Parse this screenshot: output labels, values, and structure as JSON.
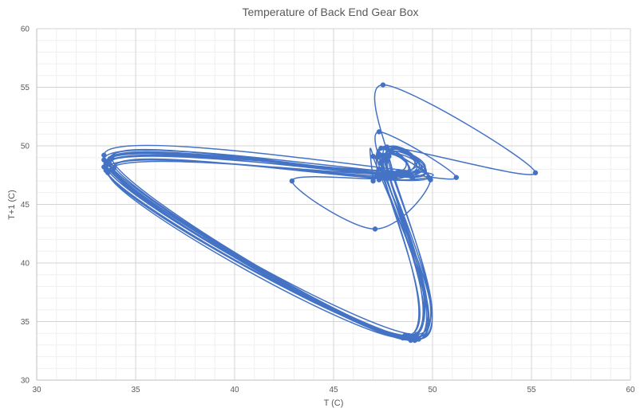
{
  "chart_data": {
    "type": "scatter",
    "title": "Temperature of Back End Gear Box",
    "xlabel": "T (C)",
    "ylabel": "T+1 (C)",
    "xlim": [
      30,
      60
    ],
    "ylim": [
      30,
      60
    ],
    "x_major_step": 5,
    "y_major_step": 5,
    "x_minor_step": 1,
    "y_minor_step": 1,
    "x_ticks": [
      "30",
      "35",
      "40",
      "45",
      "50",
      "55",
      "60"
    ],
    "y_ticks": [
      "30",
      "35",
      "40",
      "45",
      "50",
      "55",
      "60"
    ],
    "grid": true,
    "legend": "none",
    "series_color": "#4472C4",
    "series": [
      {
        "points": [
          [
            47.0,
            47.0
          ],
          [
            47.0,
            49.1
          ],
          [
            49.1,
            33.4
          ],
          [
            33.4,
            48.2
          ],
          [
            48.2,
            47.7
          ],
          [
            47.7,
            49.2
          ],
          [
            49.2,
            33.5
          ],
          [
            33.5,
            48.5
          ],
          [
            48.5,
            47.6
          ],
          [
            47.6,
            49.0
          ],
          [
            49.0,
            33.6
          ],
          [
            33.6,
            48.7
          ],
          [
            48.7,
            47.5
          ],
          [
            47.5,
            48.8
          ],
          [
            48.8,
            33.7
          ],
          [
            33.7,
            48.9
          ],
          [
            48.9,
            47.4
          ],
          [
            47.4,
            48.6
          ],
          [
            48.6,
            33.8
          ],
          [
            33.8,
            49.0
          ],
          [
            49.0,
            47.3
          ],
          [
            47.3,
            49.3
          ],
          [
            49.3,
            33.5
          ],
          [
            33.5,
            48.3
          ],
          [
            48.3,
            47.8
          ],
          [
            47.8,
            49.1
          ],
          [
            49.1,
            33.6
          ],
          [
            33.6,
            48.6
          ],
          [
            48.6,
            47.6
          ],
          [
            47.6,
            48.9
          ],
          [
            48.9,
            33.4
          ],
          [
            33.4,
            48.8
          ],
          [
            48.8,
            47.7
          ],
          [
            47.7,
            48.7
          ],
          [
            48.7,
            33.7
          ],
          [
            33.7,
            48.4
          ],
          [
            48.4,
            47.5
          ],
          [
            47.5,
            49.2
          ],
          [
            49.2,
            33.9
          ],
          [
            33.9,
            48.1
          ],
          [
            48.1,
            47.2
          ],
          [
            47.2,
            49.0
          ],
          [
            49.0,
            33.5
          ],
          [
            33.5,
            47.9
          ],
          [
            47.9,
            47.4
          ],
          [
            47.4,
            48.5
          ],
          [
            48.5,
            33.6
          ],
          [
            33.6,
            47.7
          ],
          [
            47.7,
            47.6
          ],
          [
            47.6,
            48.8
          ],
          [
            48.8,
            33.8
          ],
          [
            33.8,
            48.0
          ],
          [
            48.0,
            47.3
          ],
          [
            47.3,
            49.1
          ],
          [
            49.1,
            33.4
          ],
          [
            33.4,
            49.2
          ],
          [
            49.2,
            47.8
          ],
          [
            47.8,
            47.3
          ],
          [
            47.3,
            51.2
          ],
          [
            51.2,
            47.3
          ],
          [
            47.3,
            48.0
          ],
          [
            48.0,
            47.5
          ],
          [
            47.5,
            55.2
          ],
          [
            55.2,
            47.7
          ],
          [
            47.7,
            49.9
          ],
          [
            49.9,
            47.1
          ],
          [
            47.1,
            42.9
          ],
          [
            42.9,
            47.0
          ],
          [
            47.0,
            47.2
          ],
          [
            47.2,
            47.4
          ],
          [
            47.4,
            49.8
          ],
          [
            49.8,
            47.3
          ],
          [
            47.3,
            47.1
          ]
        ]
      }
    ]
  }
}
